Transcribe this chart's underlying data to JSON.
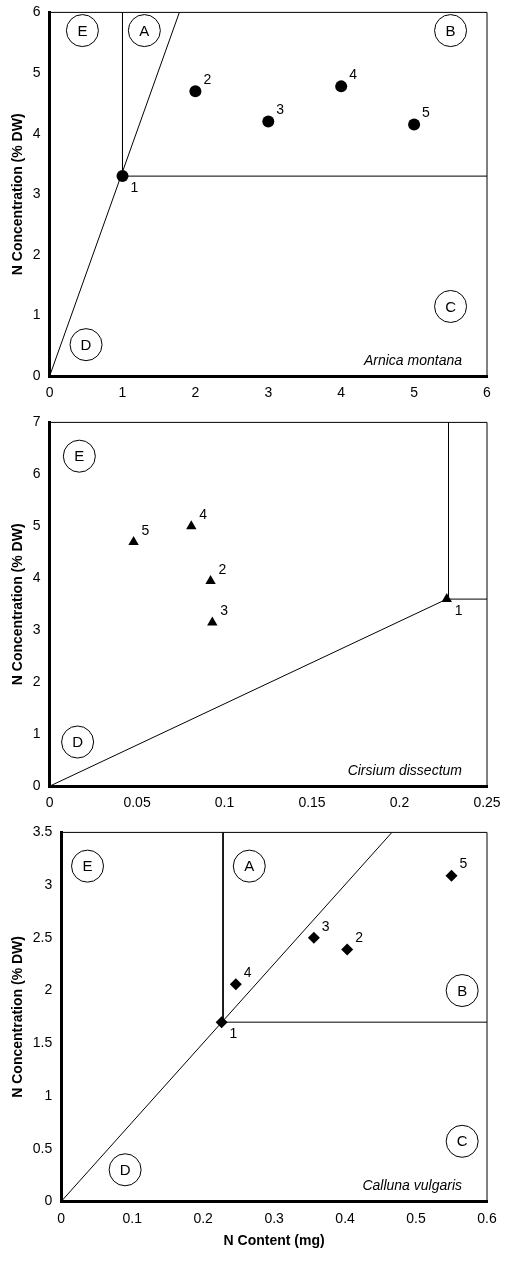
{
  "chart_data": [
    {
      "type": "scatter",
      "ylabel": "N Concentration (% DW)",
      "xlim": [
        0,
        6
      ],
      "ylim": [
        0,
        6
      ],
      "xticks": [
        0,
        1,
        2,
        3,
        4,
        5,
        6
      ],
      "yticks": [
        0,
        1,
        2,
        3,
        4,
        5,
        6
      ],
      "grid": false,
      "legend": false,
      "series": [
        {
          "type": "scatter",
          "marker": "circle",
          "color": "#000000",
          "x": [
            1,
            2,
            3,
            4,
            5
          ],
          "values": [
            3.3,
            4.7,
            4.2,
            4.78,
            4.15
          ]
        },
        {
          "type": "line",
          "marker": "none",
          "color": "#000000",
          "x": [
            0,
            1.78
          ],
          "values": [
            0,
            6
          ]
        },
        {
          "type": "line",
          "marker": "none",
          "color": "#000000",
          "x": [
            1,
            1,
            6
          ],
          "values": [
            6,
            3.3,
            3.3
          ]
        }
      ],
      "annotations": [
        "Arnica montana",
        {
          "text": "1",
          "x": 1,
          "y": 3.3
        },
        {
          "text": "2",
          "x": 2,
          "y": 4.7
        },
        {
          "text": "3",
          "x": 3,
          "y": 4.2
        },
        {
          "text": "4",
          "x": 4,
          "y": 4.78
        },
        {
          "text": "5",
          "x": 5,
          "y": 4.15
        },
        {
          "text": "E",
          "x": 0.45,
          "y": 5.7
        },
        {
          "text": "A",
          "x": 1.3,
          "y": 5.7
        },
        {
          "text": "B",
          "x": 5.5,
          "y": 5.7
        },
        {
          "text": "C",
          "x": 5.5,
          "y": 1.15
        },
        {
          "text": "D",
          "x": 0.5,
          "y": 0.52
        }
      ]
    },
    {
      "type": "scatter",
      "ylabel": "N Concentration (% DW)",
      "xlim": [
        0,
        0.25
      ],
      "ylim": [
        0,
        7
      ],
      "xticks": [
        0,
        0.05,
        0.1,
        0.15,
        0.2,
        0.25
      ],
      "yticks": [
        0,
        1,
        2,
        3,
        4,
        5,
        6,
        7
      ],
      "grid": false,
      "legend": false,
      "series": [
        {
          "type": "scatter",
          "marker": "triangle",
          "color": "#000000",
          "x": [
            0.227,
            0.092,
            0.093,
            0.081,
            0.048
          ],
          "values": [
            3.6,
            3.95,
            3.15,
            5.0,
            4.7
          ]
        },
        {
          "type": "line",
          "marker": "none",
          "color": "#000000",
          "x": [
            0,
            0.227
          ],
          "values": [
            0,
            3.6
          ]
        },
        {
          "type": "line",
          "marker": "none",
          "color": "#000000",
          "x": [
            0.228,
            0.228,
            0.25
          ],
          "values": [
            7,
            3.6,
            3.6
          ]
        }
      ],
      "annotations": [
        "Cirsium dissectum",
        {
          "text": "1",
          "x": 0.227,
          "y": 3.6
        },
        {
          "text": "2",
          "x": 0.092,
          "y": 3.95
        },
        {
          "text": "3",
          "x": 0.093,
          "y": 3.15
        },
        {
          "text": "4",
          "x": 0.081,
          "y": 5.0
        },
        {
          "text": "5",
          "x": 0.048,
          "y": 4.7
        },
        {
          "text": "E",
          "x": 0.017,
          "y": 6.35
        },
        {
          "text": "D",
          "x": 0.016,
          "y": 0.85
        }
      ]
    },
    {
      "type": "scatter",
      "xlabel": "N Content (mg)",
      "ylabel": "N Concentration (% DW)",
      "xlim": [
        0,
        0.6
      ],
      "ylim": [
        0,
        3.5
      ],
      "xticks": [
        0,
        0.1,
        0.2,
        0.3,
        0.4,
        0.5,
        0.6
      ],
      "yticks": [
        0,
        0.5,
        1,
        1.5,
        2,
        2.5,
        3,
        3.5
      ],
      "grid": false,
      "legend": false,
      "series": [
        {
          "type": "scatter",
          "marker": "diamond",
          "color": "#000000",
          "x": [
            0.226,
            0.403,
            0.356,
            0.246,
            0.55
          ],
          "values": [
            1.7,
            2.39,
            2.5,
            2.06,
            3.09
          ]
        },
        {
          "type": "line",
          "marker": "none",
          "color": "#000000",
          "x": [
            0,
            0.466
          ],
          "values": [
            0,
            3.5
          ]
        },
        {
          "type": "line",
          "marker": "none",
          "color": "#000000",
          "x": [
            0.228,
            0.228,
            0.6
          ],
          "values": [
            3.5,
            1.7,
            1.7
          ]
        }
      ],
      "annotations": [
        "Calluna vulgaris",
        {
          "text": "1",
          "x": 0.226,
          "y": 1.7
        },
        {
          "text": "2",
          "x": 0.403,
          "y": 2.39
        },
        {
          "text": "3",
          "x": 0.356,
          "y": 2.5
        },
        {
          "text": "4",
          "x": 0.246,
          "y": 2.06
        },
        {
          "text": "5",
          "x": 0.55,
          "y": 3.09
        },
        {
          "text": "E",
          "x": 0.037,
          "y": 3.18
        },
        {
          "text": "A",
          "x": 0.265,
          "y": 3.18
        },
        {
          "text": "B",
          "x": 0.565,
          "y": 2.0
        },
        {
          "text": "C",
          "x": 0.565,
          "y": 0.57
        },
        {
          "text": "D",
          "x": 0.09,
          "y": 0.3
        }
      ]
    }
  ]
}
